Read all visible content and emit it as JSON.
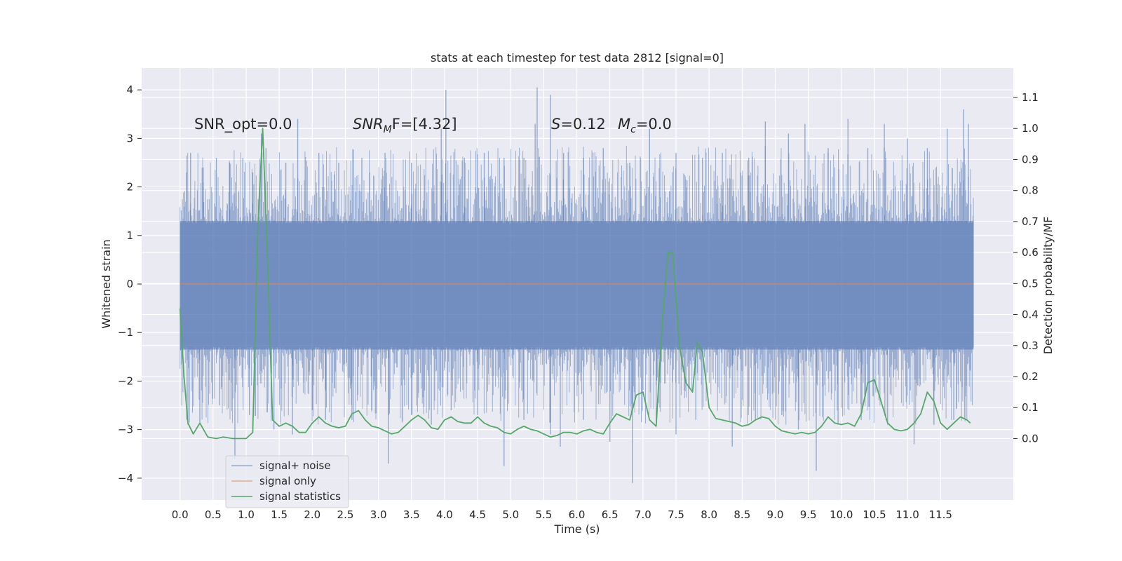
{
  "chart_data": {
    "type": "line",
    "title": "stats at each timestep for test data 2812 [signal=0]",
    "xlabel": "Time (s)",
    "ylabel": "Whitened strain",
    "ylabel_right": "Detection probability/MF",
    "xlim": [
      -0.58,
      12.6
    ],
    "ylim": [
      -4.45,
      4.45
    ],
    "ylim_right": [
      -0.198,
      1.195
    ],
    "x_ticks": [
      "0.0",
      "0.5",
      "1.0",
      "1.5",
      "2.0",
      "2.5",
      "3.0",
      "3.5",
      "4.0",
      "4.5",
      "5.0",
      "5.5",
      "6.0",
      "6.5",
      "7.0",
      "7.5",
      "8.0",
      "8.5",
      "9.0",
      "9.5",
      "10.0",
      "10.5",
      "11.0",
      "11.5"
    ],
    "y_ticks_left": [
      "4",
      "3",
      "2",
      "1",
      "0",
      "−1",
      "−2",
      "−3",
      "−4"
    ],
    "y_ticks_right": [
      "1.1",
      "1.0",
      "0.9",
      "0.8",
      "0.7",
      "0.6",
      "0.5",
      "0.4",
      "0.3",
      "0.2",
      "0.1",
      "0.0"
    ],
    "grid": true,
    "legend_position": "lower-left",
    "annotations": {
      "snr_opt": "SNR_opt=0.0",
      "snr_mf_main": "SNR",
      "snr_mf_sub": "M",
      "snr_mf_rest": "F=[4.32]",
      "s_var": "S",
      "s_rest": "=0.12",
      "mc_var": "M",
      "mc_sub": "c",
      "mc_rest": "=0.0"
    },
    "series": [
      {
        "name": "signal+ noise",
        "color": "#4c72b0",
        "x_range": [
          0.0,
          12.0
        ],
        "band": [
          -1.35,
          1.3
        ],
        "spikes": [
          [
            0.1,
            2.3
          ],
          [
            0.16,
            2.7
          ],
          [
            0.35,
            2.4
          ],
          [
            0.55,
            2.6
          ],
          [
            0.75,
            2.5
          ],
          [
            0.95,
            2.6
          ],
          [
            1.1,
            2.3
          ],
          [
            1.23,
            3.1
          ],
          [
            1.3,
            2.8
          ],
          [
            1.6,
            2.5
          ],
          [
            1.78,
            3.4
          ],
          [
            2.1,
            2.7
          ],
          [
            2.4,
            2.5
          ],
          [
            2.75,
            2.6
          ],
          [
            3.1,
            2.7
          ],
          [
            3.5,
            2.5
          ],
          [
            3.95,
            3.2
          ],
          [
            4.02,
            4.0
          ],
          [
            4.3,
            2.6
          ],
          [
            4.6,
            2.7
          ],
          [
            4.9,
            2.6
          ],
          [
            5.2,
            2.6
          ],
          [
            5.37,
            3.3
          ],
          [
            5.4,
            4.05
          ],
          [
            5.6,
            3.9
          ],
          [
            5.8,
            2.7
          ],
          [
            6.1,
            2.6
          ],
          [
            6.4,
            2.8
          ],
          [
            6.8,
            2.5
          ],
          [
            7.1,
            3.2
          ],
          [
            7.5,
            2.7
          ],
          [
            7.9,
            2.6
          ],
          [
            8.2,
            2.7
          ],
          [
            8.6,
            2.6
          ],
          [
            8.85,
            3.35
          ],
          [
            9.2,
            3.1
          ],
          [
            9.45,
            3.3
          ],
          [
            9.8,
            2.8
          ],
          [
            10.1,
            3.4
          ],
          [
            10.4,
            2.8
          ],
          [
            10.65,
            3.3
          ],
          [
            11.0,
            3.0
          ],
          [
            11.3,
            2.8
          ],
          [
            11.6,
            3.2
          ],
          [
            11.85,
            3.6
          ],
          [
            11.92,
            3.3
          ],
          [
            0.12,
            -2.9
          ],
          [
            0.3,
            -2.85
          ],
          [
            0.6,
            -2.5
          ],
          [
            0.83,
            -3.6
          ],
          [
            1.05,
            -2.7
          ],
          [
            1.42,
            -3.0
          ],
          [
            1.7,
            -3.1
          ],
          [
            2.0,
            -2.6
          ],
          [
            2.2,
            -2.8
          ],
          [
            2.6,
            -2.8
          ],
          [
            2.9,
            -2.6
          ],
          [
            3.15,
            -3.7
          ],
          [
            3.5,
            -2.7
          ],
          [
            3.8,
            -2.9
          ],
          [
            4.1,
            -2.6
          ],
          [
            4.5,
            -2.7
          ],
          [
            4.9,
            -3.75
          ],
          [
            5.2,
            -2.8
          ],
          [
            5.6,
            -3.1
          ],
          [
            5.75,
            -3.35
          ],
          [
            6.1,
            -2.8
          ],
          [
            6.5,
            -3.25
          ],
          [
            6.84,
            -4.1
          ],
          [
            7.2,
            -2.9
          ],
          [
            7.5,
            -3.1
          ],
          [
            7.8,
            -2.8
          ],
          [
            8.35,
            -3.35
          ],
          [
            8.7,
            -2.8
          ],
          [
            9.1,
            -2.7
          ],
          [
            9.35,
            -3.0
          ],
          [
            9.62,
            -3.85
          ],
          [
            9.95,
            -2.9
          ],
          [
            10.3,
            -2.8
          ],
          [
            10.7,
            -2.9
          ],
          [
            11.1,
            -3.3
          ],
          [
            11.4,
            -2.9
          ],
          [
            11.7,
            -2.8
          ]
        ]
      },
      {
        "name": "signal only",
        "color": "#dd8452",
        "x": [
          0.0,
          12.0
        ],
        "y": [
          0.0,
          0.0
        ]
      },
      {
        "name": "signal statistics",
        "color": "#55a868",
        "axis": "right",
        "x": [
          0.0,
          0.06,
          0.12,
          0.2,
          0.3,
          0.42,
          0.55,
          0.65,
          0.8,
          0.9,
          1.0,
          1.1,
          1.18,
          1.25,
          1.32,
          1.4,
          1.5,
          1.6,
          1.7,
          1.8,
          1.9,
          2.0,
          2.1,
          2.2,
          2.3,
          2.4,
          2.5,
          2.6,
          2.7,
          2.8,
          2.9,
          3.0,
          3.1,
          3.2,
          3.3,
          3.4,
          3.5,
          3.6,
          3.7,
          3.8,
          3.9,
          4.0,
          4.1,
          4.2,
          4.3,
          4.4,
          4.5,
          4.6,
          4.7,
          4.8,
          4.9,
          5.0,
          5.1,
          5.2,
          5.3,
          5.4,
          5.5,
          5.6,
          5.7,
          5.8,
          5.9,
          6.0,
          6.1,
          6.2,
          6.3,
          6.4,
          6.5,
          6.6,
          6.7,
          6.8,
          6.9,
          7.0,
          7.1,
          7.2,
          7.3,
          7.38,
          7.45,
          7.55,
          7.65,
          7.75,
          7.82,
          7.9,
          8.0,
          8.1,
          8.2,
          8.3,
          8.4,
          8.5,
          8.6,
          8.7,
          8.8,
          8.9,
          9.0,
          9.1,
          9.2,
          9.3,
          9.4,
          9.5,
          9.6,
          9.7,
          9.8,
          9.9,
          10.0,
          10.1,
          10.2,
          10.3,
          10.4,
          10.5,
          10.6,
          10.7,
          10.8,
          10.9,
          11.0,
          11.1,
          11.2,
          11.3,
          11.4,
          11.5,
          11.6,
          11.7,
          11.8,
          11.9,
          11.95
        ],
        "y": [
          0.42,
          0.2,
          0.05,
          0.015,
          0.05,
          0.005,
          0.0,
          0.005,
          0.0,
          0.0,
          0.0,
          0.02,
          0.7,
          1.0,
          0.6,
          0.06,
          0.04,
          0.05,
          0.04,
          0.02,
          0.02,
          0.05,
          0.07,
          0.05,
          0.04,
          0.035,
          0.04,
          0.08,
          0.09,
          0.06,
          0.04,
          0.035,
          0.025,
          0.015,
          0.02,
          0.04,
          0.06,
          0.075,
          0.06,
          0.035,
          0.03,
          0.06,
          0.07,
          0.055,
          0.05,
          0.05,
          0.07,
          0.05,
          0.04,
          0.035,
          0.02,
          0.015,
          0.03,
          0.04,
          0.03,
          0.025,
          0.015,
          0.005,
          0.01,
          0.02,
          0.02,
          0.015,
          0.025,
          0.03,
          0.02,
          0.015,
          0.05,
          0.08,
          0.07,
          0.06,
          0.14,
          0.15,
          0.06,
          0.04,
          0.4,
          0.6,
          0.6,
          0.3,
          0.18,
          0.15,
          0.31,
          0.28,
          0.1,
          0.065,
          0.06,
          0.055,
          0.05,
          0.04,
          0.045,
          0.06,
          0.07,
          0.065,
          0.04,
          0.025,
          0.02,
          0.015,
          0.02,
          0.015,
          0.02,
          0.04,
          0.07,
          0.05,
          0.045,
          0.05,
          0.04,
          0.08,
          0.18,
          0.19,
          0.12,
          0.05,
          0.03,
          0.025,
          0.03,
          0.05,
          0.08,
          0.15,
          0.12,
          0.05,
          0.03,
          0.05,
          0.07,
          0.06,
          0.05
        ]
      }
    ]
  }
}
